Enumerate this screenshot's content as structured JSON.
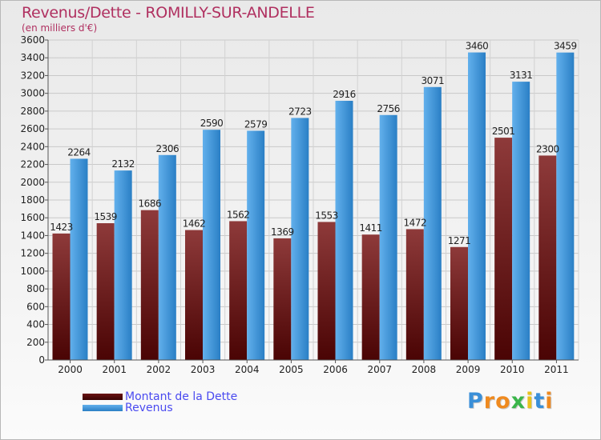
{
  "header": {
    "title": "Revenus/Dette - ROMILLY-SUR-ANDELLE",
    "subtitle": "(en milliers d'€)"
  },
  "colors": {
    "title": "#b03060",
    "dette_light": "#8e3a3a",
    "dette_dark": "#4a0404",
    "revenus_light": "#5aa8e6",
    "revenus_dark": "#2a7fc5",
    "legend_text": "#4a4af0"
  },
  "legend": {
    "dette_label": "Montant de la Dette",
    "revenus_label": "Revenus"
  },
  "logo": {
    "letters": [
      "P",
      "r",
      "o",
      "x",
      "i",
      "t",
      "i"
    ],
    "colors": [
      "#3a8fd8",
      "#ef8a1f",
      "#ef8a1f",
      "#3ab54a",
      "#e8c21c",
      "#3a8fd8",
      "#ef8a1f"
    ]
  },
  "chart_data": {
    "type": "bar",
    "title": "Revenus/Dette - ROMILLY-SUR-ANDELLE",
    "ylabel": "(en milliers d'€)",
    "xlabel": "",
    "categories": [
      "2000",
      "2001",
      "2002",
      "2003",
      "2004",
      "2005",
      "2006",
      "2007",
      "2008",
      "2009",
      "2010",
      "2011"
    ],
    "series": [
      {
        "name": "Montant de la Dette",
        "values": [
          1423,
          1539,
          1686,
          1462,
          1562,
          1369,
          1553,
          1411,
          1472,
          1271,
          2501,
          2300
        ],
        "labels": [
          "1423",
          "1539",
          "1686",
          "1462",
          "1562",
          "1369",
          "1553",
          "1411",
          "1472",
          "1271",
          "2501",
          "2300"
        ]
      },
      {
        "name": "Revenus",
        "values": [
          2264,
          2132,
          2306,
          2590,
          2579,
          2723,
          2916,
          2756,
          3071,
          3460,
          3131,
          3459
        ],
        "labels": [
          "2264",
          "2132",
          "2306",
          "2590",
          "2579",
          "2723",
          "2916",
          "2756",
          "3071",
          "3460",
          "3131",
          "3459"
        ]
      }
    ],
    "ylim": [
      0,
      3600
    ],
    "yticks": [
      0,
      200,
      400,
      600,
      800,
      1000,
      1200,
      1400,
      1600,
      1800,
      2000,
      2200,
      2400,
      2600,
      2800,
      3000,
      3200,
      3400,
      3600
    ],
    "grid": true,
    "legend_position": "bottom-left"
  }
}
